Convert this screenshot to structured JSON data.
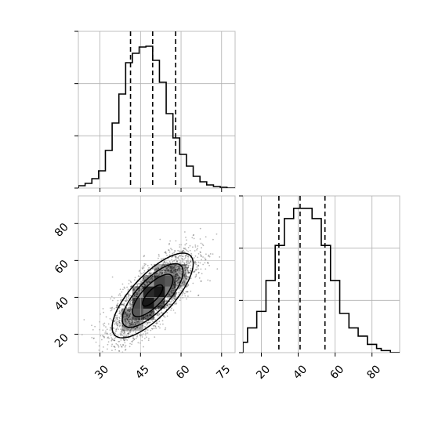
{
  "chart_data": {
    "type": "corner",
    "title": "",
    "panels": [
      {
        "id": "hist-x",
        "type": "histogram",
        "xlim": [
          22,
          80
        ],
        "bin_edges": [
          22,
          24.5,
          27,
          29.5,
          32,
          34.5,
          37,
          39.5,
          42,
          44.5,
          47,
          49.5,
          52,
          54.5,
          57,
          59.5,
          62,
          64.5,
          67,
          69.5,
          72,
          74.5,
          77,
          79.5
        ],
        "counts": [
          3,
          6,
          12,
          22,
          48,
          83,
          120,
          160,
          172,
          180,
          181,
          163,
          135,
          95,
          64,
          43,
          28,
          15,
          8,
          4,
          2,
          1,
          0
        ],
        "count_max": 200,
        "quantiles": [
          41.3,
          49.5,
          58.0
        ],
        "xticks": [
          30,
          45,
          60,
          75
        ],
        "xtick_labels": []
      },
      {
        "id": "hist-y",
        "type": "histogram",
        "xlim": [
          10,
          95
        ],
        "bin_edges": [
          10,
          12.5,
          15,
          17.5,
          20,
          22.5,
          25,
          27.5,
          30,
          32.5,
          35,
          37.5,
          40,
          42.5,
          45,
          47.5,
          50,
          52.5,
          55,
          57.5,
          60,
          62.5,
          65,
          67.5,
          70,
          72.5,
          75,
          77.5,
          80,
          82.5,
          85,
          87.5,
          90
        ],
        "counts": [
          5,
          12,
          12,
          20,
          20,
          35,
          35,
          52,
          52,
          65,
          65,
          70,
          70,
          70,
          70,
          65,
          65,
          52,
          52,
          35,
          35,
          19,
          19,
          12,
          12,
          8,
          8,
          4,
          4,
          2,
          1,
          1
        ],
        "count_max": 76,
        "quantiles": [
          29.5,
          41.0,
          54.5
        ],
        "xticks": [
          20,
          40,
          60,
          80
        ],
        "xtick_labels": [
          "20",
          "40",
          "60",
          "80"
        ]
      },
      {
        "id": "joint",
        "type": "2d-histogram-contour",
        "xlim": [
          22,
          80
        ],
        "ylim": [
          10,
          95
        ],
        "xticks": [
          30,
          45,
          60,
          75
        ],
        "xtick_labels": [
          "30",
          "45",
          "60",
          "75"
        ],
        "yticks": [
          20,
          40,
          60,
          80
        ],
        "ytick_labels": [
          "20",
          "40",
          "60",
          "80"
        ],
        "center": [
          49.5,
          41.0
        ],
        "sigma": [
          7.5,
          11.5
        ],
        "correlation": 0.75,
        "scatter_points": 3200,
        "contour_levels_sigma": [
          0.5,
          1.0,
          1.5,
          2.0
        ]
      }
    ]
  }
}
